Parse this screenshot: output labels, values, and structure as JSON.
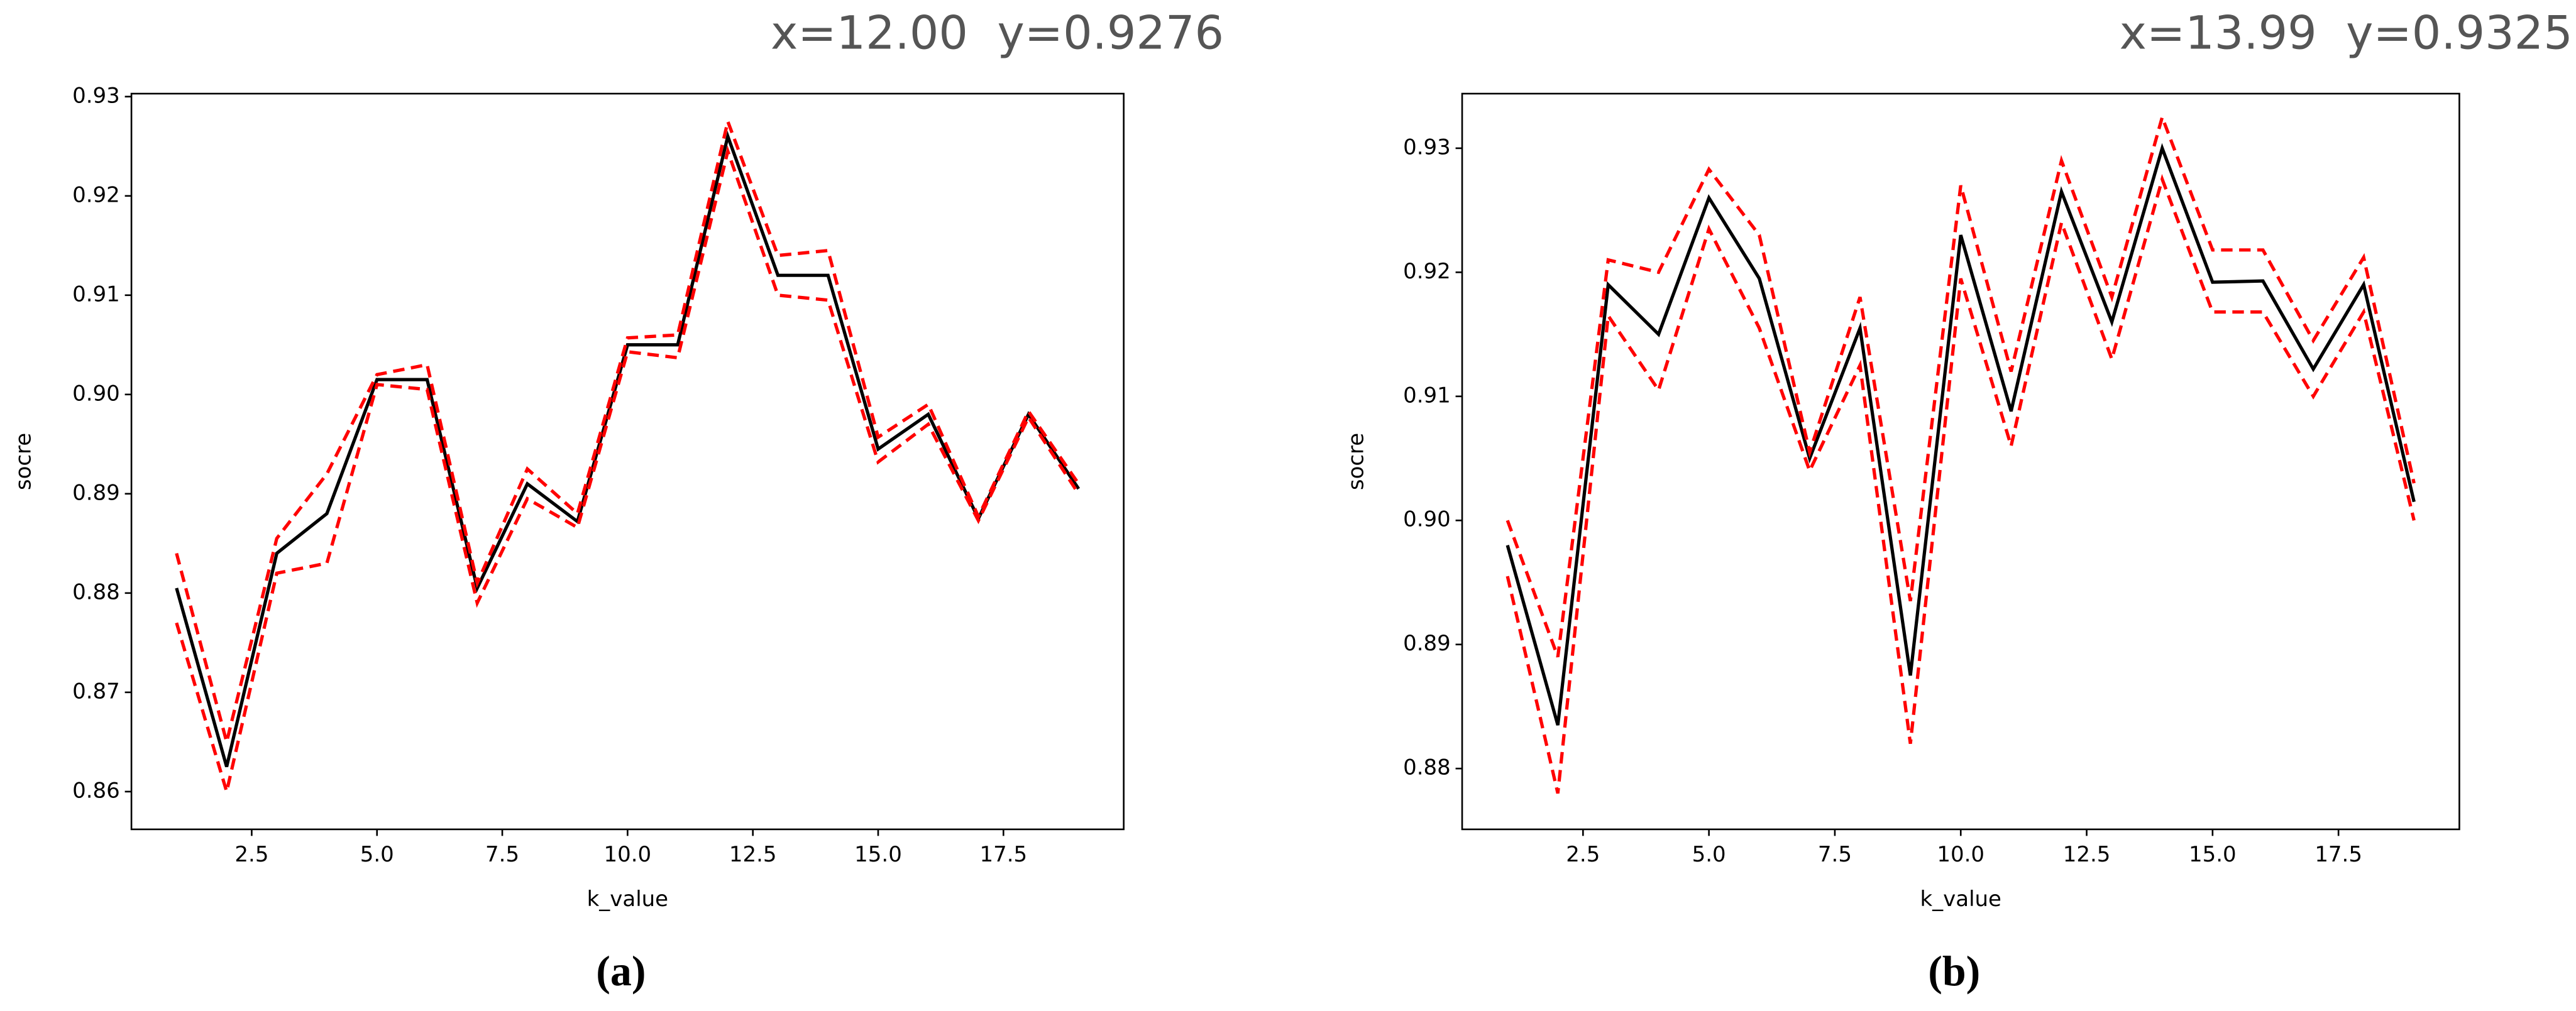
{
  "chart_data": [
    {
      "type": "line",
      "status": "x=12.00  y=0.9276",
      "xlabel": "k_value",
      "ylabel": "socre",
      "caption": "(a)",
      "x": [
        1,
        2,
        3,
        4,
        5,
        6,
        7,
        8,
        9,
        10,
        11,
        12,
        13,
        14,
        15,
        16,
        17,
        18,
        19
      ],
      "series": [
        {
          "color": "#000000",
          "linestyle": "solid",
          "values": [
            0.8805,
            0.8625,
            0.884,
            0.888,
            0.9015,
            0.9015,
            0.8805,
            0.891,
            0.8872,
            0.905,
            0.905,
            0.926,
            0.912,
            0.912,
            0.8945,
            0.898,
            0.8875,
            0.898,
            0.8905
          ]
        },
        {
          "color": "#ff0000",
          "linestyle": "dashed",
          "values": [
            0.884,
            0.865,
            0.8855,
            0.892,
            0.902,
            0.903,
            0.881,
            0.8925,
            0.888,
            0.9057,
            0.906,
            0.9275,
            0.914,
            0.9145,
            0.8957,
            0.899,
            0.8877,
            0.8983,
            0.891
          ]
        },
        {
          "color": "#ff0000",
          "linestyle": "dashed",
          "values": [
            0.877,
            0.86,
            0.882,
            0.883,
            0.901,
            0.9005,
            0.879,
            0.8895,
            0.8866,
            0.9043,
            0.9037,
            0.9245,
            0.91,
            0.9095,
            0.8932,
            0.897,
            0.8873,
            0.8977,
            0.89
          ]
        }
      ],
      "xlim": [
        0.1,
        19.9
      ],
      "xticks": [
        2.5,
        {
          "value": 5,
          "label": "5.0"
        },
        7.5,
        {
          "value": 10,
          "label": "10.0"
        },
        12.5,
        {
          "value": 15,
          "label": "15.0"
        },
        17.5
      ],
      "ylim": [
        0.8562,
        0.9303
      ],
      "yticks": [
        0.86,
        0.87,
        0.88,
        0.89,
        {
          "value": 0.9,
          "label": "0.90"
        },
        0.91,
        0.92,
        0.93
      ]
    },
    {
      "type": "line",
      "status": "x=13.99  y=0.9325",
      "xlabel": "k_value",
      "ylabel": "socre",
      "caption": "(b)",
      "x": [
        1,
        2,
        3,
        4,
        5,
        6,
        7,
        8,
        9,
        10,
        11,
        12,
        13,
        14,
        15,
        16,
        17,
        18,
        19
      ],
      "series": [
        {
          "color": "#000000",
          "linestyle": "solid",
          "values": [
            0.898,
            0.8835,
            0.919,
            0.915,
            0.926,
            0.9195,
            0.905,
            0.9155,
            0.8875,
            0.923,
            0.9088,
            0.9265,
            0.916,
            0.93,
            0.9192,
            0.9193,
            0.9122,
            0.919,
            0.9015
          ]
        },
        {
          "color": "#ff0000",
          "linestyle": "dashed",
          "values": [
            0.9,
            0.889,
            0.921,
            0.92,
            0.9283,
            0.923,
            0.9055,
            0.918,
            0.8935,
            0.927,
            0.912,
            0.929,
            0.918,
            0.9325,
            0.9218,
            0.9218,
            0.9145,
            0.9212,
            0.903
          ]
        },
        {
          "color": "#ff0000",
          "linestyle": "dashed",
          "values": [
            0.8955,
            0.878,
            0.9165,
            0.9105,
            0.9235,
            0.9155,
            0.904,
            0.9125,
            0.882,
            0.9195,
            0.906,
            0.924,
            0.913,
            0.9275,
            0.9168,
            0.9168,
            0.91,
            0.9168,
            0.9
          ]
        }
      ],
      "xlim": [
        0.1,
        19.9
      ],
      "xticks": [
        2.5,
        {
          "value": 5,
          "label": "5.0"
        },
        7.5,
        {
          "value": 10,
          "label": "10.0"
        },
        12.5,
        {
          "value": 15,
          "label": "15.0"
        },
        17.5
      ],
      "ylim": [
        0.8751,
        0.9344
      ],
      "yticks": [
        0.88,
        0.89,
        {
          "value": 0.9,
          "label": "0.90"
        },
        0.91,
        0.92,
        0.93
      ]
    }
  ]
}
